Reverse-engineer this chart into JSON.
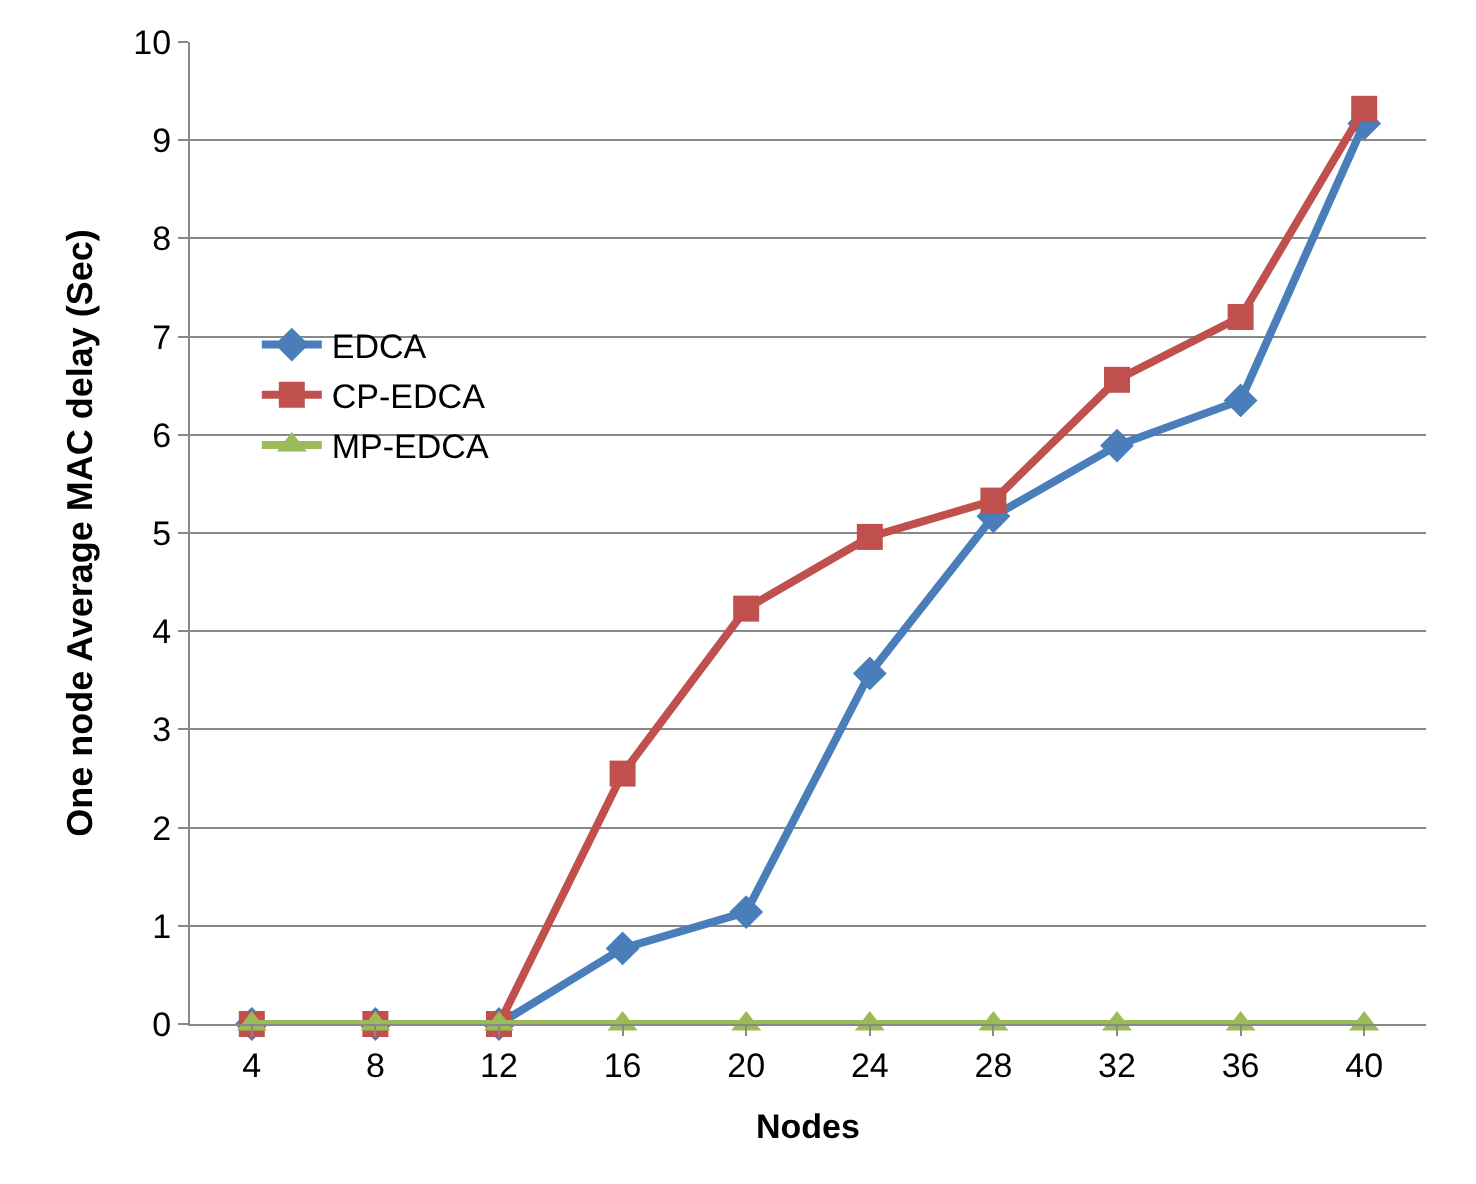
{
  "chart_data": {
    "type": "line",
    "xlabel": "Nodes",
    "ylabel": "One node Average MAC delay (Sec)",
    "categories": [
      "4",
      "8",
      "12",
      "16",
      "20",
      "24",
      "28",
      "32",
      "36",
      "40"
    ],
    "series": [
      {
        "name": "EDCA",
        "color": "#4a7ebb",
        "marker": "diamond",
        "values": [
          0,
          0,
          0,
          0.77,
          1.14,
          3.57,
          5.17,
          5.89,
          6.35,
          9.17
        ]
      },
      {
        "name": "CP-EDCA",
        "color": "#c0504d",
        "marker": "square",
        "values": [
          0,
          0,
          0,
          2.55,
          4.23,
          4.96,
          5.33,
          6.56,
          7.2,
          9.32
        ]
      },
      {
        "name": "MP-EDCA",
        "color": "#9bbb59",
        "marker": "triangle",
        "values": [
          0,
          0,
          0,
          0,
          0,
          0,
          0,
          0,
          0,
          0
        ]
      }
    ],
    "ylim": [
      0,
      10
    ],
    "yticks": [
      0,
      1,
      2,
      3,
      4,
      5,
      6,
      7,
      8,
      9,
      10
    ],
    "grid": "y",
    "legend": "left",
    "line_style": "solid"
  }
}
